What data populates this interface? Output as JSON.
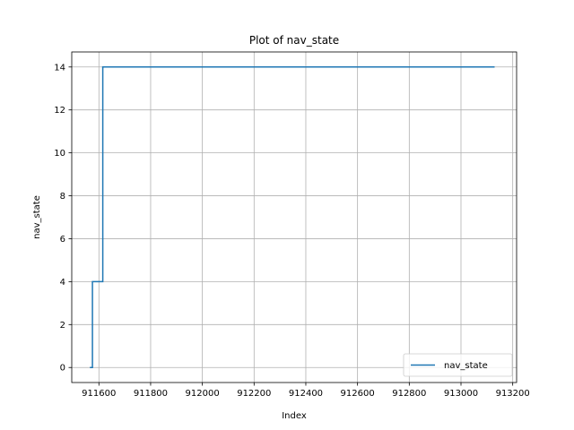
{
  "chart_data": {
    "type": "line",
    "title": "Plot of nav_state",
    "xlabel": "Index",
    "ylabel": "nav_state",
    "xlim": [
      911495,
      913215
    ],
    "ylim": [
      -0.7,
      14.7
    ],
    "grid": true,
    "legend_placement": "lower-right",
    "xticks": [
      911600,
      911800,
      912000,
      912200,
      912400,
      912600,
      912800,
      913000,
      913200
    ],
    "xtick_labels": [
      "911600",
      "911800",
      "912000",
      "912200",
      "912400",
      "912600",
      "912800",
      "913000",
      "913200"
    ],
    "yticks": [
      0,
      2,
      4,
      6,
      8,
      10,
      12,
      14
    ],
    "ytick_labels": [
      "0",
      "2",
      "4",
      "6",
      "8",
      "10",
      "12",
      "14"
    ],
    "series": [
      {
        "name": "nav_state",
        "color": "#1f77b4",
        "drawstyle": "steps-post",
        "x": [
          911565,
          911575,
          911615,
          913130
        ],
        "y": [
          0,
          4,
          14,
          14
        ]
      }
    ]
  }
}
